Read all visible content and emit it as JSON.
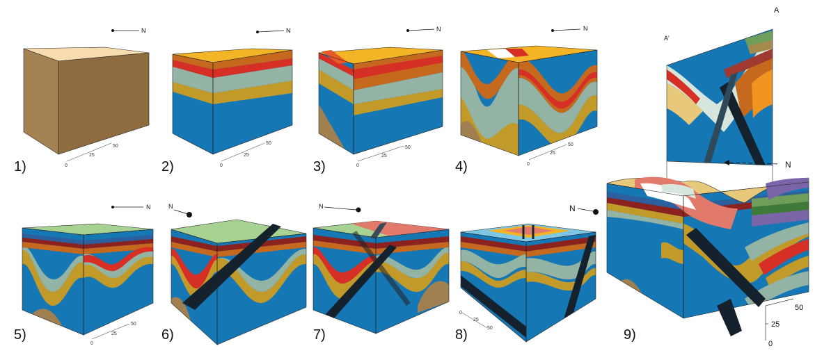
{
  "panels": [
    {
      "label": "1)"
    },
    {
      "label": "2)"
    },
    {
      "label": "3)"
    },
    {
      "label": "4)"
    },
    {
      "label": "5)"
    },
    {
      "label": "6)"
    },
    {
      "label": "7)"
    },
    {
      "label": "8)"
    },
    {
      "label": "9)"
    }
  ],
  "north_label": "N",
  "scale_ticks": [
    "0",
    "25",
    "50"
  ],
  "section_labels": {
    "a": "A",
    "a_prime": "A'"
  },
  "colors": {
    "tan": "#a08050",
    "tan_top": "#f6dcae",
    "orange_top": "#f3b526",
    "brown_orange": "#c4691d",
    "red": "#d62f26",
    "sage": "#93b3a4",
    "mustard": "#c19a2a",
    "blue": "#1677b5",
    "pale_green": "#a8d292",
    "salmon": "#e27a6b",
    "dark_blue_black": "#15222e",
    "purple": "#7a65a8",
    "navy": "#2c5f9e"
  }
}
